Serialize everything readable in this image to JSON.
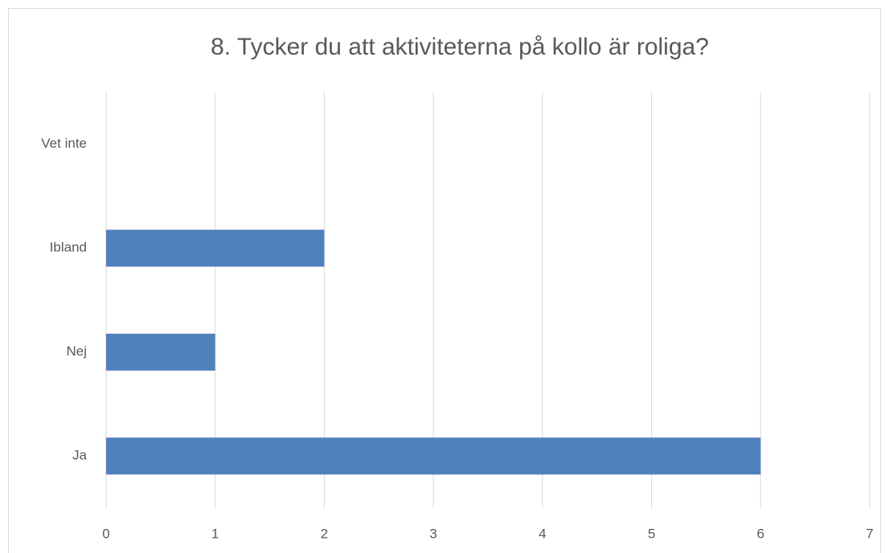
{
  "chart_data": {
    "type": "barh",
    "title": "8. Tycker du att aktiviteterna på kollo är roliga?",
    "categories": [
      "Vet inte",
      "Ibland",
      "Nej",
      "Ja"
    ],
    "values": [
      0,
      2,
      1,
      6
    ],
    "color": "#4f81bd",
    "xlim": [
      0,
      7
    ],
    "xticks": [
      0,
      1,
      2,
      3,
      4,
      5,
      6,
      7
    ],
    "grid": true
  }
}
